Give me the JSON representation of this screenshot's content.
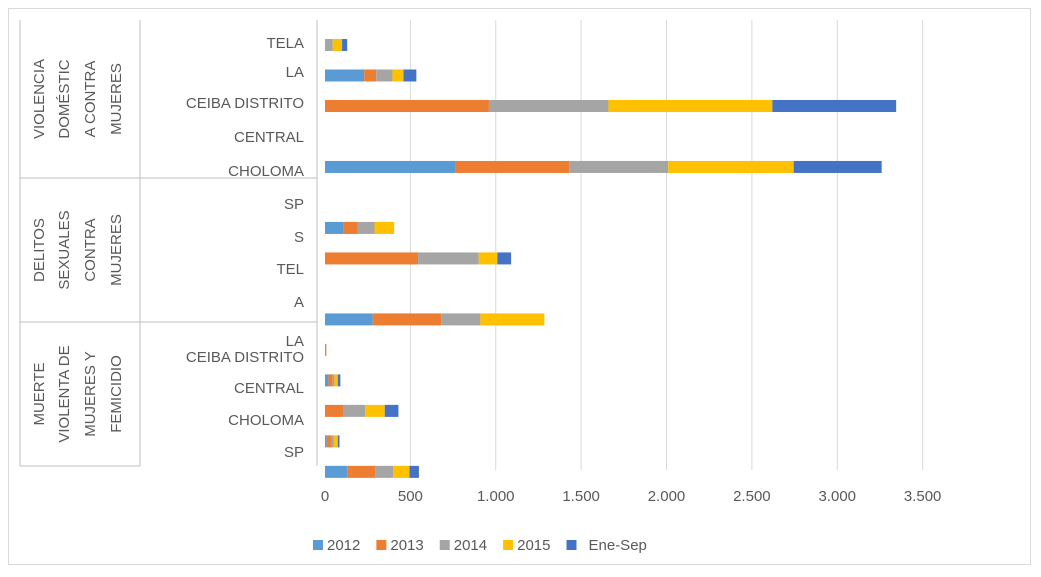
{
  "chart_data": {
    "type": "bar",
    "orientation": "horizontal",
    "stacked": true,
    "groups": [
      {
        "label_lines": [
          "VIOLENCIA",
          "DOMÉSTIC",
          "A CONTRA",
          "MUJERES"
        ],
        "category_lines": [
          "TELA",
          "LA",
          "CEIBA DISTRITO",
          "CENTRAL",
          "CHOLOMA"
        ]
      },
      {
        "label_lines": [
          "DELITOS",
          "SEXUALES",
          "CONTRA",
          "MUJERES"
        ],
        "category_lines": [
          "SP",
          "S",
          "TEL",
          "A"
        ]
      },
      {
        "label_lines": [
          "MUERTE",
          "VIOLENTA DE",
          "MUJERES Y",
          "FEMICIDIO"
        ],
        "category_lines": [
          "LA",
          "CEIBA DISTRITO",
          "CENTRAL",
          "CHOLOMA",
          "SP"
        ]
      }
    ],
    "series": [
      {
        "name": "2012",
        "color": "#5b9bd5",
        "values": [
          0,
          230,
          0,
          null,
          765,
          null,
          110,
          0,
          null,
          280,
          5,
          20,
          0,
          10,
          130
        ]
      },
      {
        "name": "2013",
        "color": "#ed7d31",
        "values": [
          0,
          70,
          960,
          null,
          665,
          null,
          80,
          545,
          null,
          400,
          3,
          25,
          110,
          25,
          165
        ]
      },
      {
        "name": "2014",
        "color": "#a5a5a5",
        "values": [
          45,
          95,
          700,
          null,
          580,
          null,
          100,
          355,
          null,
          230,
          0,
          10,
          125,
          15,
          105
        ]
      },
      {
        "name": "2015",
        "color": "#ffc000",
        "values": [
          55,
          65,
          960,
          null,
          735,
          null,
          115,
          110,
          null,
          375,
          0,
          20,
          115,
          25,
          95
        ]
      },
      {
        "name": "Ene-Sep",
        "color": "#4472c4",
        "values": [
          30,
          75,
          725,
          null,
          515,
          null,
          0,
          80,
          null,
          0,
          0,
          15,
          80,
          10,
          55
        ]
      }
    ],
    "xlim": [
      0,
      4000
    ],
    "xticks": [
      0,
      500,
      {
        "value": 1000,
        "label": "1.000"
      },
      {
        "value": 1500,
        "label": "1.500"
      },
      {
        "value": 2000,
        "label": "2.000"
      },
      {
        "value": 2500,
        "label": "2.500"
      },
      {
        "value": 3000,
        "label": "3.000"
      },
      {
        "value": 3500,
        "label": "3.500"
      }
    ],
    "grid": true,
    "legend": "bottom"
  }
}
